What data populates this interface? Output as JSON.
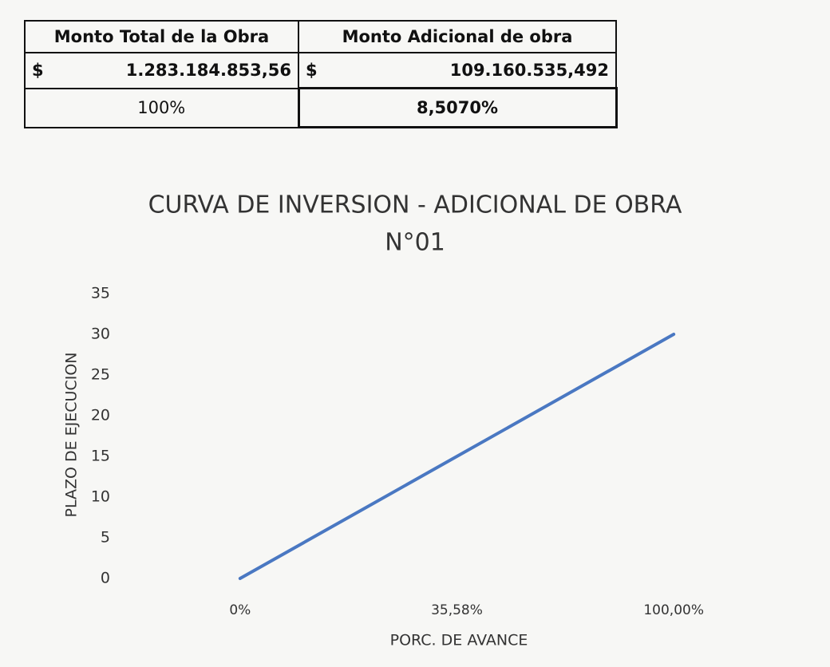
{
  "table": {
    "header": [
      "Monto Total de la Obra",
      "Monto Adicional de obra"
    ],
    "rows": [
      [
        {
          "currency": "$",
          "amount": "1.283.184.853,56"
        },
        {
          "currency": "$",
          "amount": "109.160.535,492"
        }
      ],
      [
        "100%",
        "8,5070%"
      ]
    ]
  },
  "chart_data": {
    "type": "line",
    "title": "CURVA DE INVERSION - ADICIONAL DE OBRA",
    "subtitle": "N°01",
    "x_label": "PORC. DE AVANCE",
    "y_label": "PLAZO DE EJECUCION",
    "categories": [
      "0%",
      "35,58%",
      "100,00%"
    ],
    "values": [
      0,
      15,
      30
    ],
    "color": "#4a78c2",
    "ylim": [
      0,
      35
    ],
    "yticks": [
      0,
      5,
      10,
      15,
      20,
      25,
      30,
      35
    ],
    "grid": false
  }
}
